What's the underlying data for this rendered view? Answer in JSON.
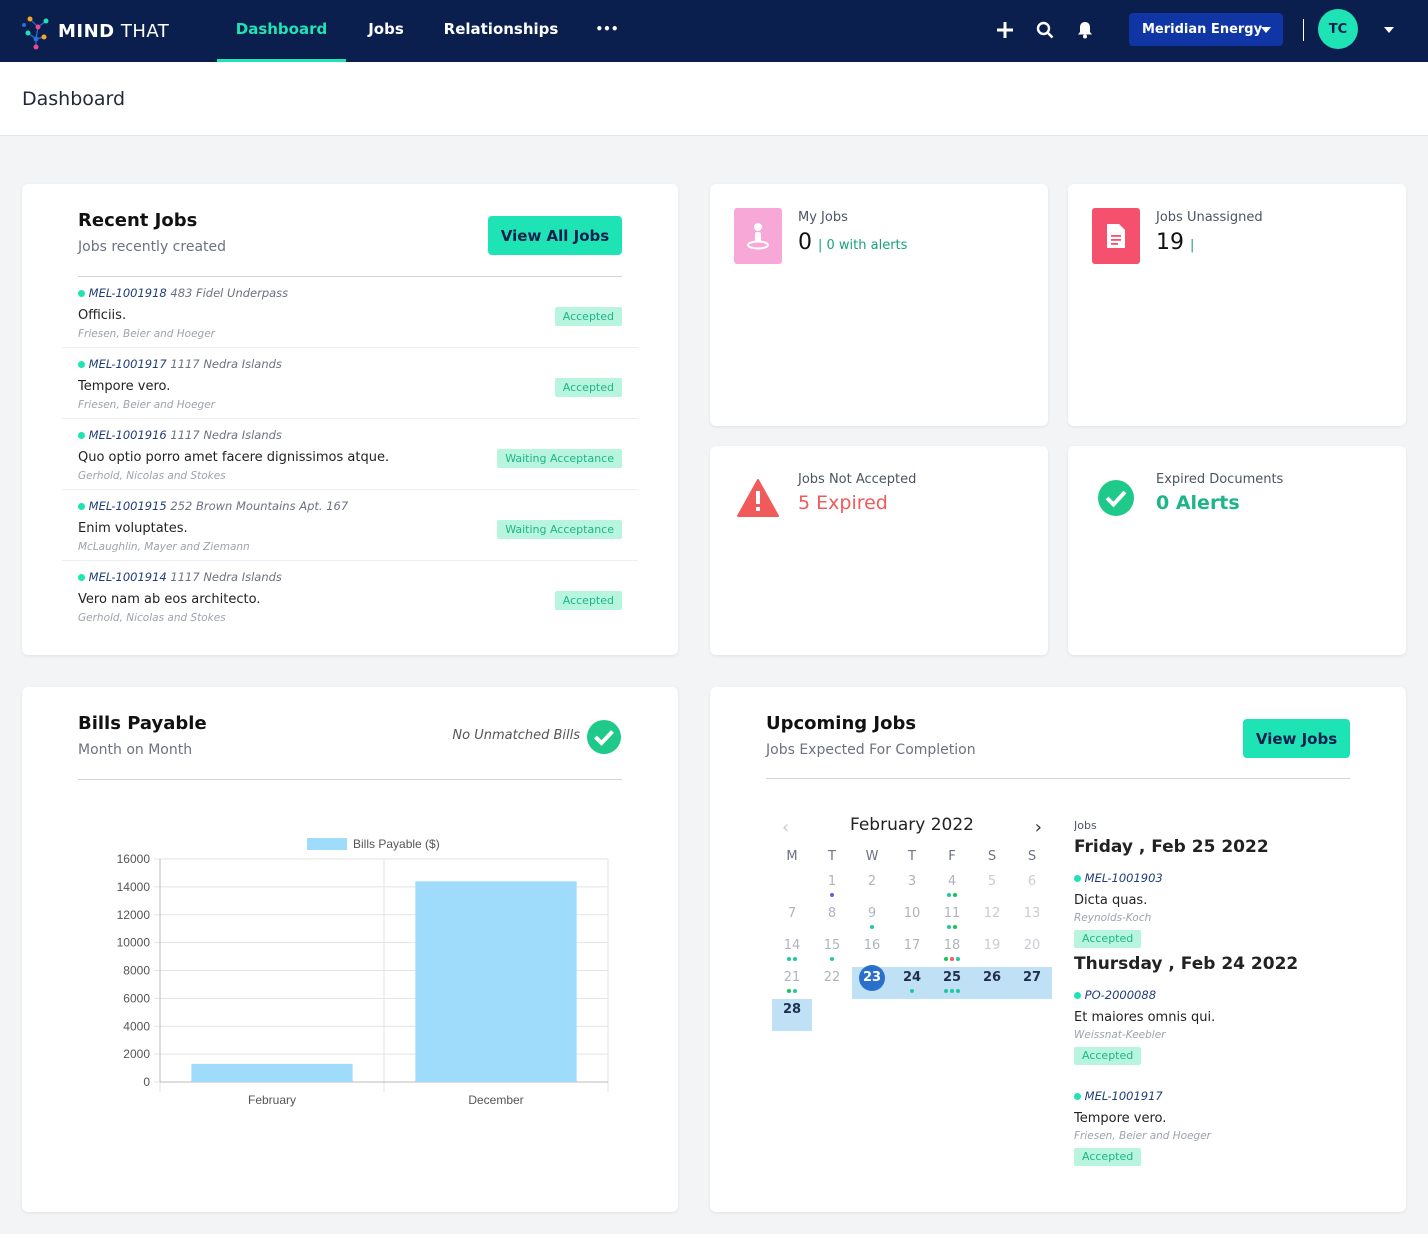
{
  "nav": {
    "logo_bold": "MIND",
    "logo_light": "THAT",
    "links": [
      "Dashboard",
      "Jobs",
      "Relationships"
    ],
    "more_label": "•••",
    "org": "Meridian Energy",
    "avatar": "TC"
  },
  "page": {
    "title": "Dashboard"
  },
  "recent_jobs": {
    "title": "Recent Jobs",
    "subtitle": "Jobs recently created",
    "button": "View All Jobs",
    "items": [
      {
        "ref": "MEL-1001918",
        "address": "483 Fidel Underpass",
        "title": "Officiis.",
        "client": "Friesen, Beier and Hoeger",
        "status": "Accepted"
      },
      {
        "ref": "MEL-1001917",
        "address": "1117 Nedra Islands",
        "title": "Tempore vero.",
        "client": "Friesen, Beier and Hoeger",
        "status": "Accepted"
      },
      {
        "ref": "MEL-1001916",
        "address": "1117 Nedra Islands",
        "title": "Quo optio porro amet facere dignissimos atque.",
        "client": "Gerhold, Nicolas and Stokes",
        "status": "Waiting Acceptance"
      },
      {
        "ref": "MEL-1001915",
        "address": "252 Brown Mountains Apt. 167",
        "title": "Enim voluptates.",
        "client": "McLaughlin, Mayer and Ziemann",
        "status": "Waiting Acceptance"
      },
      {
        "ref": "MEL-1001914",
        "address": "1117 Nedra Islands",
        "title": "Vero nam ab eos architecto.",
        "client": "Gerhold, Nicolas and Stokes",
        "status": "Accepted"
      }
    ]
  },
  "stats": {
    "my_jobs": {
      "label": "My Jobs",
      "value": "0",
      "extra": "| 0 with alerts"
    },
    "unassigned": {
      "label": "Jobs Unassigned",
      "value": "19",
      "extra": "|"
    },
    "not_accepted": {
      "label": "Jobs Not Accepted",
      "value": "5 Expired"
    },
    "expired_docs": {
      "label": "Expired Documents",
      "value": "0 Alerts"
    }
  },
  "bills": {
    "title": "Bills Payable",
    "subtitle": "Month on Month",
    "status": "No Unmatched Bills"
  },
  "chart_data": {
    "type": "bar",
    "categories": [
      "February",
      "December"
    ],
    "series": [
      {
        "name": "Bills Payable ($)",
        "values": [
          1300,
          14400
        ]
      }
    ],
    "ylim": [
      0,
      16000
    ],
    "yticks": [
      0,
      2000,
      4000,
      6000,
      8000,
      10000,
      12000,
      14000,
      16000
    ],
    "legend": "top",
    "grid": true,
    "color": "#9fdcfb"
  },
  "upcoming": {
    "title": "Upcoming Jobs",
    "subtitle": "Jobs Expected For Completion",
    "button": "View Jobs",
    "calendar": {
      "month": "February 2022",
      "dow": [
        "M",
        "T",
        "W",
        "T",
        "F",
        "S",
        "S"
      ],
      "today": 23
    },
    "panel_title": "Jobs",
    "groups": [
      {
        "date": "Friday , Feb 25 2022",
        "items": [
          {
            "ref": "MEL-1001903",
            "title": "Dicta quas.",
            "client": "Reynolds-Koch",
            "status": "Accepted"
          }
        ]
      },
      {
        "date": "Thursday , Feb 24 2022",
        "items": [
          {
            "ref": "PO-2000088",
            "title": "Et maiores omnis qui.",
            "client": "Weissnat-Keebler",
            "status": "Accepted"
          },
          {
            "ref": "MEL-1001917",
            "title": "Tempore vero.",
            "client": "Friesen, Beier and Hoeger",
            "status": "Accepted"
          }
        ]
      }
    ]
  },
  "colors": {
    "nav_bg": "#0a1f4d",
    "accent": "#1ee3b4",
    "badge_bg": "#b7f5de",
    "badge_text": "#1eb58a",
    "alert_red": "#f05a5a",
    "org_button": "#1036a6"
  }
}
